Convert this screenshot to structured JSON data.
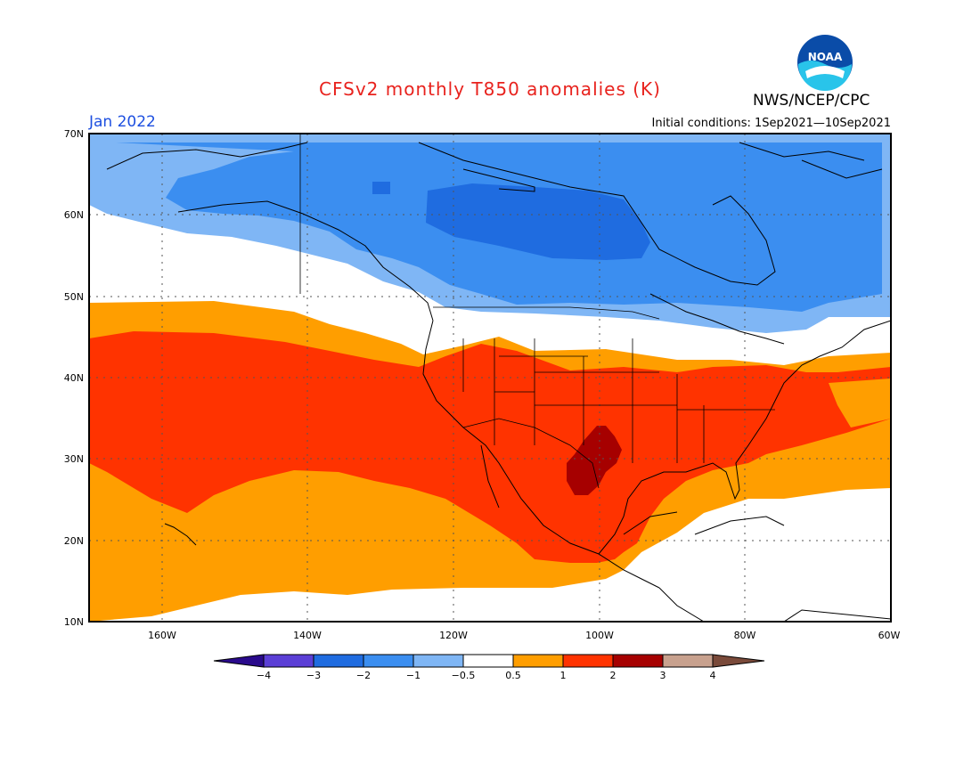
{
  "header": {
    "title": "CFSv2 monthly T850 anomalies (K)",
    "agency": "NWS/NCEP/CPC",
    "logo_text": "NOAA",
    "month": "Jan 2022",
    "initial_conditions": "Initial conditions: 1Sep2021—10Sep2021"
  },
  "map": {
    "projection": "equirectangular",
    "lon_range": [
      -170,
      -60
    ],
    "lat_range": [
      10,
      70
    ],
    "lon_ticks": [
      "160W",
      "140W",
      "120W",
      "100W",
      "80W",
      "60W"
    ],
    "lat_ticks": [
      "10N",
      "20N",
      "30N",
      "40N",
      "50N",
      "60N",
      "70N"
    ],
    "grid": "dotted",
    "anomaly_pattern": "below normal over northern Canada and Alaska; above normal across southern US, Mexico and the subtropical Pacific; strongest warm anomaly over Texas"
  },
  "colorbar": {
    "labels": [
      "−4",
      "−3",
      "−2",
      "−1",
      "−0.5",
      "0.5",
      "1",
      "2",
      "3",
      "4"
    ],
    "colors": [
      "#2a0a8c",
      "#5b3fd6",
      "#1f6ce0",
      "#3b8ef0",
      "#7fb6f5",
      "#ffffff",
      "#ff9e00",
      "#ff3300",
      "#a60000",
      "#c8a18e",
      "#7a4a3a"
    ]
  }
}
